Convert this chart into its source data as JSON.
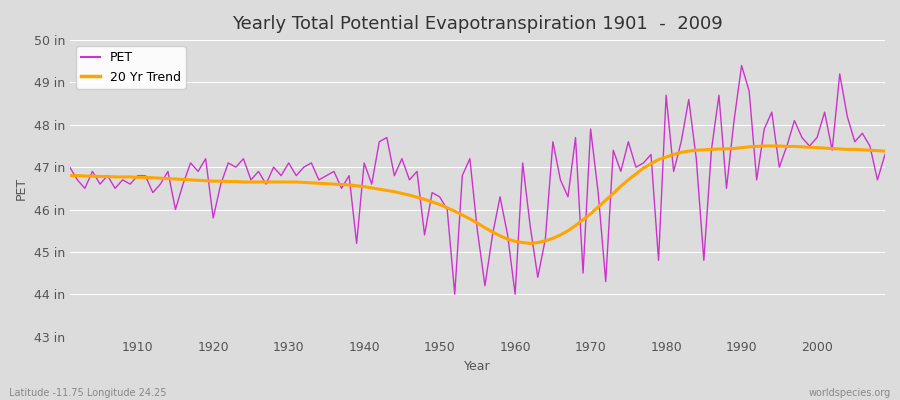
{
  "title": "Yearly Total Potential Evapotranspiration 1901  -  2009",
  "xlabel": "Year",
  "ylabel": "PET",
  "ylim": [
    43,
    50
  ],
  "xlim": [
    1901,
    2009
  ],
  "yticks": [
    43,
    44,
    45,
    46,
    47,
    48,
    49,
    50
  ],
  "ytick_labels": [
    "43 in",
    "44 in",
    "45 in",
    "46 in",
    "47 in",
    "48 in",
    "49 in",
    "50 in"
  ],
  "xticks": [
    1910,
    1920,
    1930,
    1940,
    1950,
    1960,
    1970,
    1980,
    1990,
    2000
  ],
  "pet_color": "#CC33CC",
  "trend_color": "#FFA500",
  "bg_color": "#DCDCDC",
  "grid_color": "#FFFFFF",
  "title_fontsize": 13,
  "axis_fontsize": 9,
  "tick_fontsize": 9,
  "legend_labels": [
    "PET",
    "20 Yr Trend"
  ],
  "footer_left": "Latitude -11.75 Longitude 24.25",
  "footer_right": "worldspecies.org",
  "years": [
    1901,
    1902,
    1903,
    1904,
    1905,
    1906,
    1907,
    1908,
    1909,
    1910,
    1911,
    1912,
    1913,
    1914,
    1915,
    1916,
    1917,
    1918,
    1919,
    1920,
    1921,
    1922,
    1923,
    1924,
    1925,
    1926,
    1927,
    1928,
    1929,
    1930,
    1931,
    1932,
    1933,
    1934,
    1935,
    1936,
    1937,
    1938,
    1939,
    1940,
    1941,
    1942,
    1943,
    1944,
    1945,
    1946,
    1947,
    1948,
    1949,
    1950,
    1951,
    1952,
    1953,
    1954,
    1955,
    1956,
    1957,
    1958,
    1959,
    1960,
    1961,
    1962,
    1963,
    1964,
    1965,
    1966,
    1967,
    1968,
    1969,
    1970,
    1971,
    1972,
    1973,
    1974,
    1975,
    1976,
    1977,
    1978,
    1979,
    1980,
    1981,
    1982,
    1983,
    1984,
    1985,
    1986,
    1987,
    1988,
    1989,
    1990,
    1991,
    1992,
    1993,
    1994,
    1995,
    1996,
    1997,
    1998,
    1999,
    2000,
    2001,
    2002,
    2003,
    2004,
    2005,
    2006,
    2007,
    2008,
    2009
  ],
  "pet_values": [
    47.0,
    46.7,
    46.5,
    46.9,
    46.6,
    46.8,
    46.5,
    46.7,
    46.6,
    46.8,
    46.8,
    46.4,
    46.6,
    46.9,
    46.0,
    46.6,
    47.1,
    46.9,
    47.2,
    45.8,
    46.6,
    47.1,
    47.0,
    47.2,
    46.7,
    46.9,
    46.6,
    47.0,
    46.8,
    47.1,
    46.8,
    47.0,
    47.1,
    46.7,
    46.8,
    46.9,
    46.5,
    46.8,
    45.2,
    47.1,
    46.6,
    47.6,
    47.7,
    46.8,
    47.2,
    46.7,
    46.9,
    45.4,
    46.4,
    46.3,
    46.0,
    44.0,
    46.8,
    47.2,
    45.5,
    44.2,
    45.4,
    46.3,
    45.4,
    44.0,
    47.1,
    45.6,
    44.4,
    45.3,
    47.6,
    46.7,
    46.3,
    47.7,
    44.5,
    47.9,
    46.4,
    44.3,
    47.4,
    46.9,
    47.6,
    47.0,
    47.1,
    47.3,
    44.8,
    48.7,
    46.9,
    47.6,
    48.6,
    47.2,
    44.8,
    47.4,
    48.7,
    46.5,
    48.1,
    49.4,
    48.8,
    46.7,
    47.9,
    48.3,
    47.0,
    47.5,
    48.1,
    47.7,
    47.5,
    47.7,
    48.3,
    47.4,
    49.2,
    48.2,
    47.6,
    47.8,
    47.5,
    46.7,
    47.3
  ],
  "trend_values": [
    46.8,
    46.8,
    46.79,
    46.79,
    46.78,
    46.78,
    46.77,
    46.77,
    46.77,
    46.76,
    46.76,
    46.75,
    46.74,
    46.73,
    46.72,
    46.71,
    46.7,
    46.69,
    46.68,
    46.67,
    46.67,
    46.66,
    46.66,
    46.65,
    46.65,
    46.65,
    46.65,
    46.65,
    46.65,
    46.65,
    46.65,
    46.64,
    46.63,
    46.62,
    46.61,
    46.6,
    46.59,
    46.58,
    46.56,
    46.54,
    46.51,
    46.48,
    46.45,
    46.42,
    46.38,
    46.34,
    46.29,
    46.24,
    46.18,
    46.12,
    46.04,
    45.96,
    45.87,
    45.78,
    45.68,
    45.57,
    45.47,
    45.38,
    45.3,
    45.25,
    45.22,
    45.2,
    45.22,
    45.26,
    45.32,
    45.4,
    45.5,
    45.62,
    45.76,
    45.9,
    46.06,
    46.22,
    46.38,
    46.55,
    46.7,
    46.84,
    46.98,
    47.08,
    47.18,
    47.24,
    47.3,
    47.35,
    47.38,
    47.4,
    47.41,
    47.42,
    47.43,
    47.43,
    47.44,
    47.46,
    47.48,
    47.49,
    47.5,
    47.5,
    47.5,
    47.49,
    47.49,
    47.48,
    47.47,
    47.46,
    47.45,
    47.44,
    47.43,
    47.42,
    47.42,
    47.41,
    47.4,
    47.39,
    47.38
  ]
}
